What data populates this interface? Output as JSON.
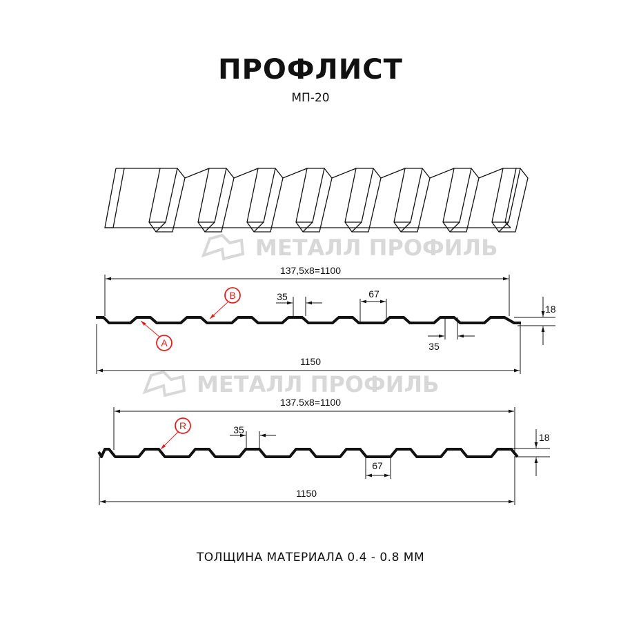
{
  "header": {
    "title": "ПРОФЛИСТ",
    "subtitle": "МП-20"
  },
  "watermark": {
    "text": "МЕТАЛЛ ПРОФИЛЬ"
  },
  "profile_a": {
    "pitch_label": "137,5x8=1100",
    "total_label": "1150",
    "crest_label": "35",
    "valley_label": "67",
    "crest_label_2": "35",
    "height_label": "18",
    "marker_a": "A",
    "marker_b": "B"
  },
  "profile_r": {
    "pitch_label": "137.5x8=1100",
    "total_label": "1150",
    "crest_label": "35",
    "valley_label": "67",
    "height_label": "18",
    "marker_r": "R"
  },
  "footer": {
    "thickness": "ТОЛЩИНА МАТЕРИАЛА 0.4 - 0.8 ММ"
  },
  "colors": {
    "line": "#111111",
    "marker": "#e02020",
    "watermark": "#d8d8d8"
  }
}
